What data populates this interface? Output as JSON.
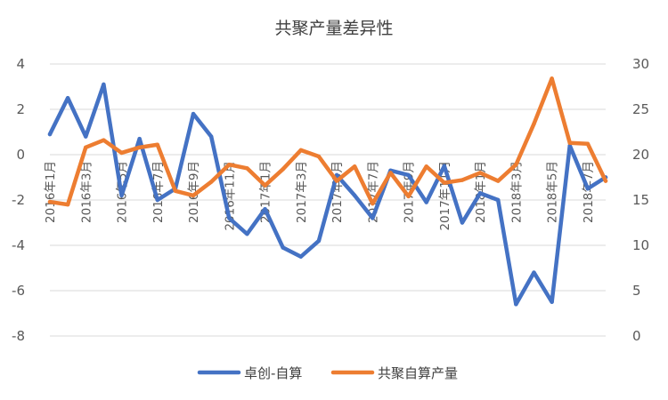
{
  "chart_data": {
    "type": "line",
    "title": "共聚产量差异性",
    "categories": [
      "2016年1月",
      "2016年2月",
      "2016年3月",
      "2016年4月",
      "2016年5月",
      "2016年6月",
      "2016年7月",
      "2016年8月",
      "2016年9月",
      "2016年10月",
      "2016年11月",
      "2016年12月",
      "2017年1月",
      "2017年2月",
      "2017年3月",
      "2017年4月",
      "2017年5月",
      "2017年6月",
      "2017年7月",
      "2017年8月",
      "2017年9月",
      "2017年10月",
      "2017年11月",
      "2017年12月",
      "2018年1月",
      "2018年2月",
      "2018年3月",
      "2018年4月",
      "2018年5月",
      "2018年6月",
      "2018年7月",
      "2018年8月"
    ],
    "x_tick_labels": [
      "2016年1月",
      "2016年3月",
      "2016年5月",
      "2016年7月",
      "2016年9月",
      "2016年11月",
      "2017年1月",
      "2017年3月",
      "2017年5月",
      "2017年7月",
      "2017年9月",
      "2017年11月",
      "2018年1月",
      "2018年3月",
      "2018年5月",
      "2018年7月"
    ],
    "y_left": {
      "min": -8,
      "max": 4,
      "ticks": [
        4,
        2,
        0,
        -2,
        -4,
        -6,
        -8
      ]
    },
    "y_right": {
      "min": 0,
      "max": 30,
      "ticks": [
        30,
        25,
        20,
        15,
        10,
        5,
        0
      ]
    },
    "series": [
      {
        "name": "卓创-自算",
        "axis": "left",
        "color": "#4472C4",
        "values": [
          0.9,
          2.5,
          0.8,
          3.1,
          -1.8,
          0.7,
          -2.0,
          -1.5,
          1.8,
          0.8,
          -2.8,
          -3.5,
          -2.4,
          -4.1,
          -4.5,
          -3.8,
          -0.9,
          -1.8,
          -2.8,
          -0.7,
          -0.9,
          -2.1,
          -0.5,
          -3.0,
          -1.7,
          -2.0,
          -6.6,
          -5.2,
          -6.5,
          0.4,
          -1.5,
          -1.0
        ]
      },
      {
        "name": "共聚自算产量",
        "axis": "right",
        "color": "#ED7D31",
        "values": [
          14.8,
          14.5,
          20.8,
          21.6,
          20.2,
          20.8,
          21.1,
          16.0,
          15.5,
          17.0,
          18.9,
          18.5,
          16.6,
          18.4,
          20.5,
          19.8,
          17.1,
          18.7,
          14.6,
          18.0,
          15.4,
          18.7,
          16.9,
          17.2,
          18.0,
          17.1,
          18.9,
          23.4,
          28.4,
          21.3,
          21.2,
          17.1
        ]
      }
    ],
    "legend": {
      "position": "bottom",
      "entries": [
        "卓创-自算",
        "共聚自算产量"
      ]
    },
    "grid": true,
    "gridline_color": "#D9D9D9"
  }
}
